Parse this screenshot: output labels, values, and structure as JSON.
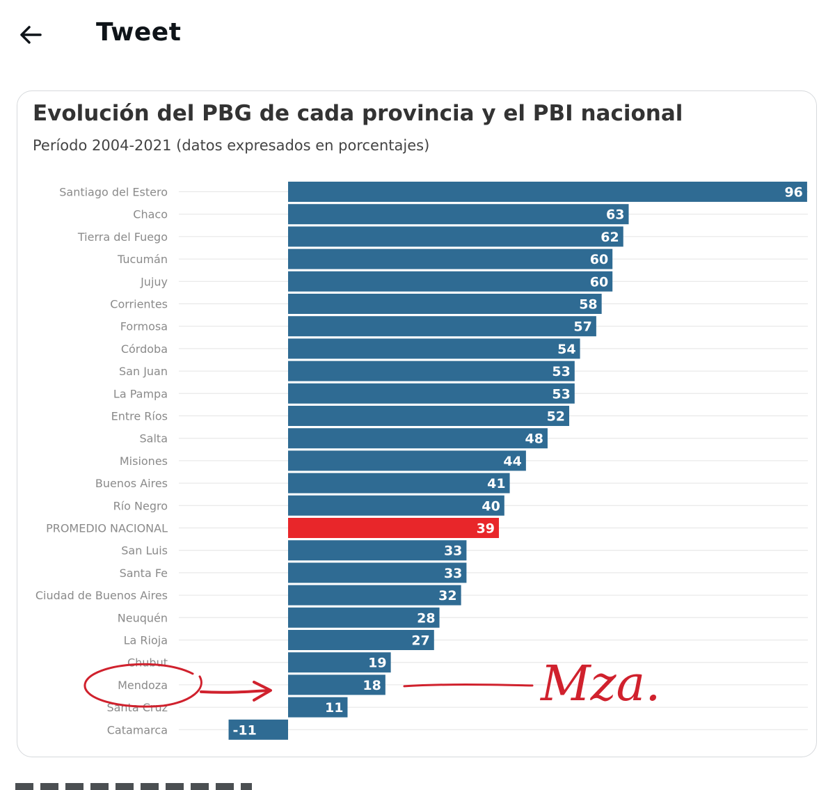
{
  "header": {
    "title": "Tweet",
    "back_icon": "arrow-left-icon"
  },
  "colors": {
    "bar": "#2f6b93",
    "highlight": "#e8262a",
    "annotation": "#d0212d",
    "label": "#8a8a8a"
  },
  "chart_data": {
    "type": "bar",
    "orientation": "horizontal",
    "title": "Evolución del PBG de cada provincia y el PBI nacional",
    "subtitle": "Período 2004-2021 (datos expresados en porcentajes)",
    "xlabel": "",
    "ylabel": "",
    "grid": true,
    "highlight_category": "PROMEDIO NACIONAL",
    "categories": [
      "Santiago del Estero",
      "Chaco",
      "Tierra del Fuego",
      "Tucumán",
      "Jujuy",
      "Corrientes",
      "Formosa",
      "Córdoba",
      "San Juan",
      "La Pampa",
      "Entre Ríos",
      "Salta",
      "Misiones",
      "Buenos Aires",
      "Río Negro",
      "PROMEDIO NACIONAL",
      "San Luis",
      "Santa Fe",
      "Ciudad de Buenos Aires",
      "Neuquén",
      "La Rioja",
      "Chubut",
      "Mendoza",
      "Santa Cruz",
      "Catamarca"
    ],
    "values": [
      96,
      63,
      62,
      60,
      60,
      58,
      57,
      54,
      53,
      53,
      52,
      48,
      44,
      41,
      40,
      39,
      33,
      33,
      32,
      28,
      27,
      19,
      18,
      11,
      -11
    ]
  },
  "annotation": {
    "text": "Mza.",
    "target": "Mendoza"
  }
}
